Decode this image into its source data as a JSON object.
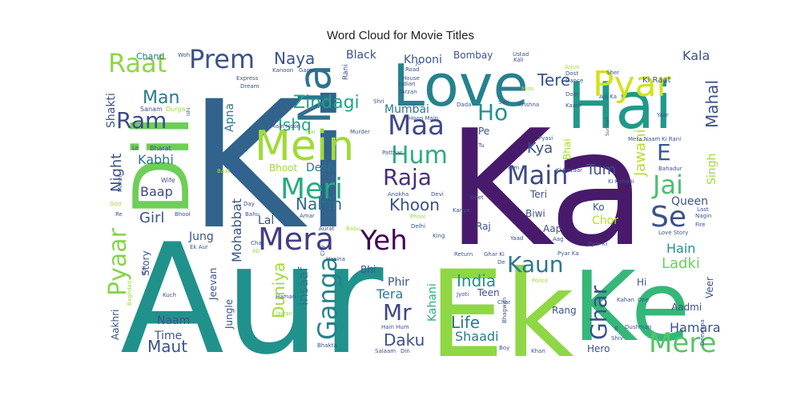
{
  "chart_data": {
    "type": "word-cloud",
    "title": "Word Cloud for Movie Titles",
    "palette": "viridis",
    "words": [
      {
        "text": "Ki",
        "color": "#31638c"
      },
      {
        "text": "Ka",
        "color": "#481a6c"
      },
      {
        "text": "Aur",
        "color": "#21918c"
      },
      {
        "text": "Ek",
        "color": "#8fd744"
      },
      {
        "text": "Ke",
        "color": "#35b779"
      },
      {
        "text": "Hai",
        "color": "#1f998a"
      },
      {
        "text": "Love",
        "color": "#26818e"
      },
      {
        "text": "Dil",
        "color": "#6ece58"
      },
      {
        "text": "Na",
        "color": "#2c728e"
      },
      {
        "text": "Mein",
        "color": "#a0da39"
      },
      {
        "text": "Pyar",
        "color": "#d2e21b"
      },
      {
        "text": "Mera",
        "color": "#433e85"
      },
      {
        "text": "Yeh",
        "color": "#440154"
      },
      {
        "text": "Meri",
        "color": "#27ad81"
      },
      {
        "text": "Ganga",
        "color": "#26828e"
      },
      {
        "text": "Prem",
        "color": "#3b528b"
      },
      {
        "text": "Raat",
        "color": "#8fd744"
      },
      {
        "text": "Maa",
        "color": "#3e4989"
      },
      {
        "text": "Hum",
        "color": "#29af7f"
      },
      {
        "text": "Raja",
        "color": "#472f7d"
      },
      {
        "text": "Main",
        "color": "#3e4a89"
      },
      {
        "text": "Jai",
        "color": "#4ac16d"
      },
      {
        "text": "Se",
        "color": "#3b528b"
      },
      {
        "text": "Kaun",
        "color": "#2a788e"
      },
      {
        "text": "Mere",
        "color": "#56c667"
      },
      {
        "text": "Pyaar",
        "color": "#86d549"
      },
      {
        "text": "Ghar",
        "color": "#3b528b"
      },
      {
        "text": "Mr",
        "color": "#414487"
      },
      {
        "text": "Ho",
        "color": "#1f948c"
      },
      {
        "text": "Ram",
        "color": "#3e4989"
      },
      {
        "text": "E",
        "color": "#38588c"
      },
      {
        "text": "Zindagi",
        "color": "#20a486"
      },
      {
        "text": "Naya",
        "color": "#3b528b"
      },
      {
        "text": "Tere",
        "color": "#3b528b"
      },
      {
        "text": "Kala",
        "color": "#3b528b"
      },
      {
        "text": "Mahal",
        "color": "#3b528b"
      },
      {
        "text": "Man",
        "color": "#2a788e"
      },
      {
        "text": "Ishq",
        "color": "#20a486"
      },
      {
        "text": "Nahin",
        "color": "#2e6e8e"
      },
      {
        "text": "Khoon",
        "color": "#3b528b"
      },
      {
        "text": "Night",
        "color": "#3b528b"
      },
      {
        "text": "Kabhi",
        "color": "#2c728e"
      },
      {
        "text": "Baap",
        "color": "#3e4989"
      },
      {
        "text": "Girl",
        "color": "#3b528b"
      },
      {
        "text": "Duniya",
        "color": "#a0da39"
      },
      {
        "text": "India",
        "color": "#21918c"
      },
      {
        "text": "Daku",
        "color": "#3b528b"
      },
      {
        "text": "Life",
        "color": "#2a788e"
      },
      {
        "text": "Maut",
        "color": "#3b528b"
      },
      {
        "text": "Tum",
        "color": "#3b528b"
      },
      {
        "text": "Kya",
        "color": "#3b528b"
      },
      {
        "text": "Queen",
        "color": "#3b528b"
      },
      {
        "text": "Ladki",
        "color": "#6ece58"
      },
      {
        "text": "Hain",
        "color": "#21918c"
      },
      {
        "text": "Jawani",
        "color": "#b5de2b"
      },
      {
        "text": "Mohabbat",
        "color": "#3b528b"
      },
      {
        "text": "Hamara",
        "color": "#3b528b"
      },
      {
        "text": "Shaadi",
        "color": "#2a788e"
      },
      {
        "text": "Tera",
        "color": "#2a788e"
      },
      {
        "text": "Insaaf",
        "color": "#2a788e"
      },
      {
        "text": "Kahani",
        "color": "#27ad81"
      },
      {
        "text": "Desh",
        "color": "#2a788e"
      },
      {
        "text": "Bhoot",
        "color": "#a0da39"
      },
      {
        "text": "Khooni",
        "color": "#3b528b"
      },
      {
        "text": "Black",
        "color": "#3b528b"
      },
      {
        "text": "Bombay",
        "color": "#3b528b"
      },
      {
        "text": "Mumbai",
        "color": "#2a788e"
      },
      {
        "text": "Singh",
        "color": "#a0da39"
      },
      {
        "text": "Chor",
        "color": "#b5de2b"
      },
      {
        "text": "Naam",
        "color": "#3b528b"
      },
      {
        "text": "Time",
        "color": "#3b528b"
      },
      {
        "text": "Phir",
        "color": "#3b528b"
      },
      {
        "text": "Jung",
        "color": "#3b528b"
      },
      {
        "text": "Lal",
        "color": "#3b528b"
      },
      {
        "text": "Bhi",
        "color": "#3b528b"
      },
      {
        "text": "Apna",
        "color": "#2a788e"
      },
      {
        "text": "Shakti",
        "color": "#3b528b"
      },
      {
        "text": "Story",
        "color": "#3b528b"
      },
      {
        "text": "Jeevan",
        "color": "#3b528b"
      },
      {
        "text": "Jungle",
        "color": "#3b528b"
      },
      {
        "text": "Teen",
        "color": "#3b528b"
      },
      {
        "text": "Rang",
        "color": "#3b528b"
      },
      {
        "text": "Hero",
        "color": "#3b528b"
      },
      {
        "text": "Aadmi",
        "color": "#3b528b"
      },
      {
        "text": "Veer",
        "color": "#3b528b"
      },
      {
        "text": "Hi",
        "color": "#3b528b"
      },
      {
        "text": "Aap",
        "color": "#3b528b"
      },
      {
        "text": "Biwi",
        "color": "#3b528b"
      },
      {
        "text": "Ko",
        "color": "#3b528b"
      },
      {
        "text": "Raj",
        "color": "#3b528b"
      },
      {
        "text": "Teri",
        "color": "#3b528b"
      },
      {
        "text": "Bhai",
        "color": "#a0da39"
      },
      {
        "text": "Pe",
        "color": "#3b528b"
      },
      {
        "text": "Aakhri",
        "color": "#3b528b"
      },
      {
        "text": "Chand",
        "color": "#2a788e"
      },
      {
        "text": "Sanam",
        "color": "#3b528b"
      },
      {
        "text": "Durga",
        "color": "#a0da39"
      },
      {
        "text": "Bharat",
        "color": "#3b528b"
      },
      {
        "text": "Wife",
        "color": "#3b528b"
      },
      {
        "text": "Rani",
        "color": "#3b528b"
      },
      {
        "text": "Ki Raat",
        "color": "#3b528b"
      },
      {
        "text": "Main Hoon",
        "color": "#3b528b"
      },
      {
        "text": "Ki Rani",
        "color": "#3b528b"
      },
      {
        "text": "Ki Kahani",
        "color": "#3b528b"
      },
      {
        "text": "Bahadur",
        "color": "#3b528b"
      },
      {
        "text": "Aaj Ka",
        "color": "#3b528b"
      },
      {
        "text": "Mera Naam",
        "color": "#3b528b"
      },
      {
        "text": "Love Story",
        "color": "#3b528b"
      },
      {
        "text": "Nagin",
        "color": "#3b528b"
      },
      {
        "text": "Fire",
        "color": "#3b528b"
      },
      {
        "text": "Last",
        "color": "#3b528b"
      },
      {
        "text": "Sher",
        "color": "#3b528b"
      },
      {
        "text": "Yaar",
        "color": "#3b528b"
      },
      {
        "text": "Sundari",
        "color": "#3b528b"
      },
      {
        "text": "Kaam",
        "color": "#3b528b"
      },
      {
        "text": "Dance",
        "color": "#3b528b"
      },
      {
        "text": "Dost",
        "color": "#3b528b"
      },
      {
        "text": "Arjun",
        "color": "#a0da39"
      },
      {
        "text": "Door",
        "color": "#3b528b"
      },
      {
        "text": "Miss",
        "color": "#a0da39"
      },
      {
        "text": "Krishna",
        "color": "#3b528b"
      },
      {
        "text": "Sati",
        "color": "#3b528b"
      },
      {
        "text": "Dada",
        "color": "#3b528b"
      },
      {
        "text": "Ustad",
        "color": "#3b528b"
      },
      {
        "text": "Kali",
        "color": "#3b528b"
      },
      {
        "text": "Jo",
        "color": "#3b528b"
      },
      {
        "text": "Road",
        "color": "#3b528b"
      },
      {
        "text": "House",
        "color": "#3b528b"
      },
      {
        "text": "Indian",
        "color": "#3b528b"
      },
      {
        "text": "Tarzan",
        "color": "#3b528b"
      },
      {
        "text": "Shri",
        "color": "#3b528b"
      },
      {
        "text": "Hoon Main",
        "color": "#3b528b"
      },
      {
        "text": "Murder",
        "color": "#3b528b"
      },
      {
        "text": "Patthar",
        "color": "#3b528b"
      },
      {
        "text": "Pyasi",
        "color": "#3b528b"
      },
      {
        "text": "Tu",
        "color": "#3b528b"
      },
      {
        "text": "Ki Bazaar",
        "color": "#3b528b"
      },
      {
        "text": "Film",
        "color": "#3b528b"
      },
      {
        "text": "Geet",
        "color": "#3b528b"
      },
      {
        "text": "Kanya",
        "color": "#3b528b"
      },
      {
        "text": "Phool",
        "color": "#a0da39"
      },
      {
        "text": "Delhi",
        "color": "#3b528b"
      },
      {
        "text": "King",
        "color": "#3b528b"
      },
      {
        "text": "Return",
        "color": "#3b528b"
      },
      {
        "text": "Ghar Ki",
        "color": "#3b528b"
      },
      {
        "text": "De",
        "color": "#3b528b"
      },
      {
        "text": "Pyar Ki",
        "color": "#3b528b"
      },
      {
        "text": "Aag",
        "color": "#3b528b"
      },
      {
        "text": "Yaad",
        "color": "#3b528b"
      },
      {
        "text": "Pyar Ka",
        "color": "#3b528b"
      },
      {
        "text": "Police",
        "color": "#a0da39"
      },
      {
        "text": "Jyoti",
        "color": "#3b528b"
      },
      {
        "text": "Char",
        "color": "#3b528b"
      },
      {
        "text": "Bhagwan",
        "color": "#3b528b"
      },
      {
        "text": "Kahan",
        "color": "#3b528b"
      },
      {
        "text": "B",
        "color": "#3b528b"
      },
      {
        "text": "Shiv",
        "color": "#3b528b"
      },
      {
        "text": "Dushman",
        "color": "#3b528b"
      },
      {
        "text": "One",
        "color": "#3b528b"
      },
      {
        "text": "Boy",
        "color": "#3b528b"
      },
      {
        "text": "Khan",
        "color": "#3b528b"
      },
      {
        "text": "Hain Hum",
        "color": "#3b528b"
      },
      {
        "text": "Salaam",
        "color": "#3b528b"
      },
      {
        "text": "Din",
        "color": "#3b528b"
      },
      {
        "text": "Bhakta",
        "color": "#3b528b"
      },
      {
        "text": "Hasina",
        "color": "#3b528b"
      },
      {
        "text": "City",
        "color": "#3b528b"
      },
      {
        "text": "Aurat",
        "color": "#3b528b"
      },
      {
        "text": "Babu",
        "color": "#a0da39"
      },
      {
        "text": "Hamari",
        "color": "#3b528b"
      },
      {
        "text": "Jawan",
        "color": "#a0da39"
      },
      {
        "text": "Ab",
        "color": "#a0da39"
      },
      {
        "text": "Chal",
        "color": "#3b528b"
      },
      {
        "text": "Bahu",
        "color": "#3b528b"
      },
      {
        "text": "Day",
        "color": "#3b528b"
      },
      {
        "text": "Amar",
        "color": "#3b528b"
      },
      {
        "text": "Anokha",
        "color": "#3b528b"
      },
      {
        "text": "Devi",
        "color": "#3b528b"
      },
      {
        "text": "Bhool",
        "color": "#3b528b"
      },
      {
        "text": "Re",
        "color": "#3b528b"
      },
      {
        "text": "God",
        "color": "#a0da39"
      },
      {
        "text": "Manzil",
        "color": "#3b528b"
      },
      {
        "text": "Le",
        "color": "#3b528b"
      },
      {
        "text": "Baat",
        "color": "#a0da39"
      },
      {
        "text": "Ek Aur",
        "color": "#3b528b"
      },
      {
        "text": "Koi",
        "color": "#3b528b"
      },
      {
        "text": "Baghdad",
        "color": "#a0da39"
      },
      {
        "text": "Kuch",
        "color": "#3b528b"
      },
      {
        "text": "Express",
        "color": "#3b528b"
      },
      {
        "text": "Dream",
        "color": "#3b528b"
      },
      {
        "text": "Kanoon",
        "color": "#3b528b"
      },
      {
        "text": "Game",
        "color": "#3b528b"
      },
      {
        "text": "Woh",
        "color": "#3b528b"
      },
      {
        "text": "Nai",
        "color": "#a0da39"
      },
      {
        "text": "Ishi",
        "color": "#3b528b"
      },
      {
        "text": "Deewana",
        "color": "#3b528b"
      }
    ]
  }
}
